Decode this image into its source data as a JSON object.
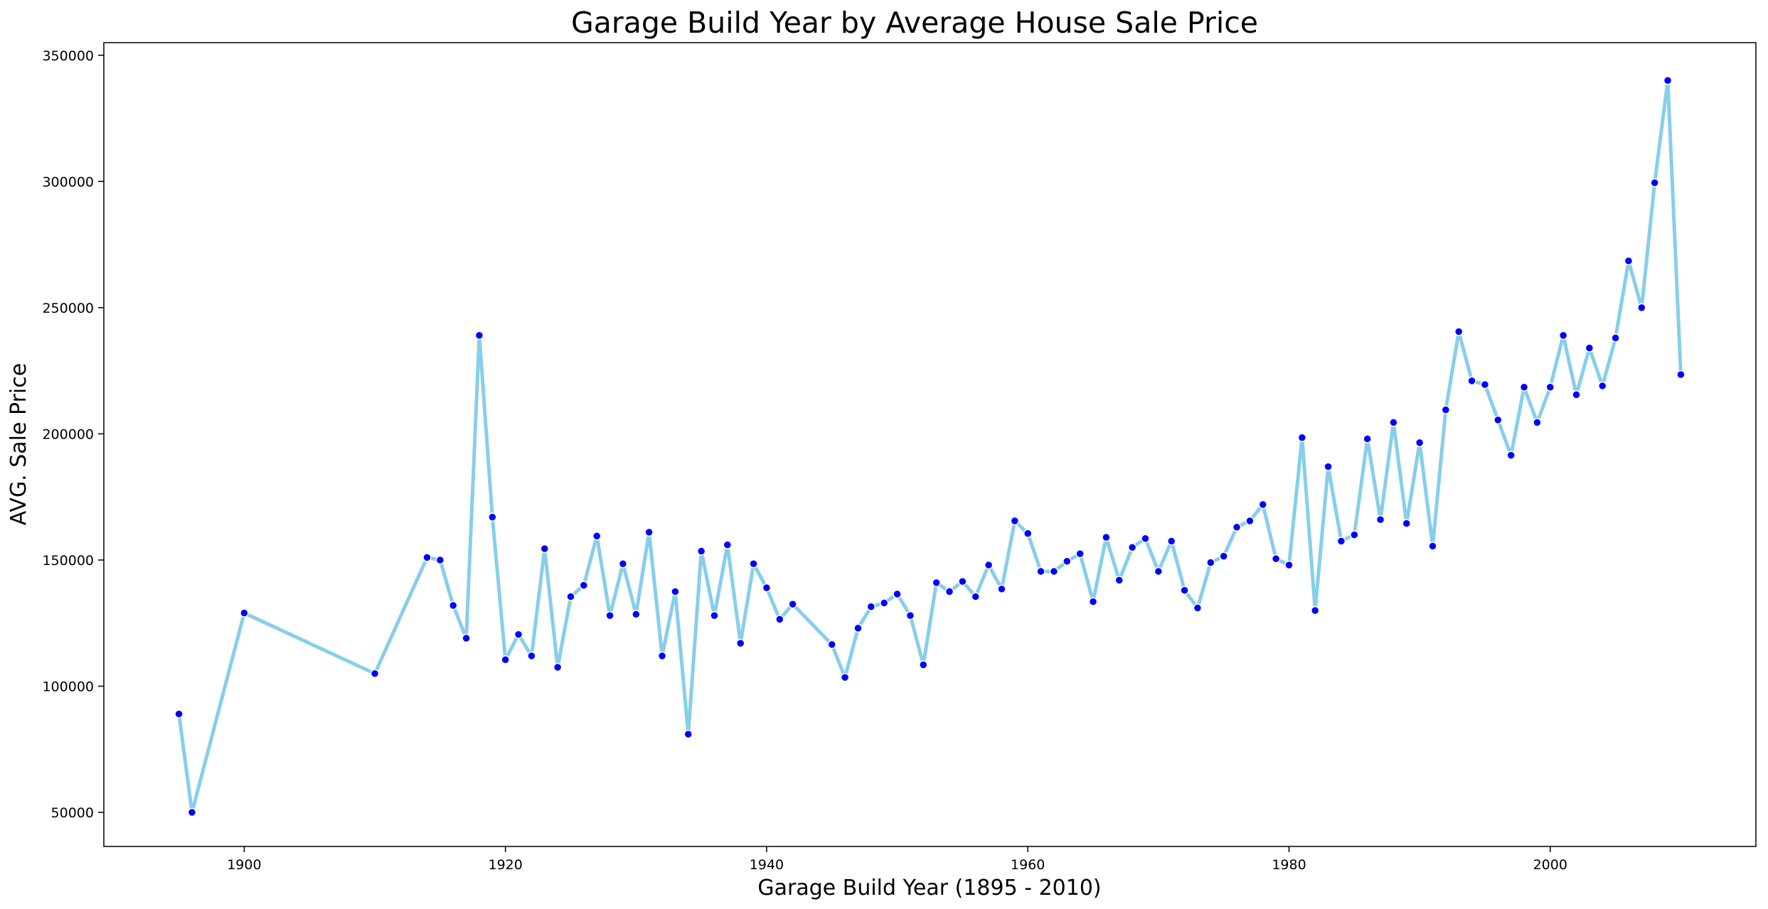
{
  "chart_data": {
    "type": "line",
    "title": "Garage Build Year by Average House Sale Price",
    "xlabel": "Garage Build Year (1895 - 2010)",
    "ylabel": "AVG. Sale Price",
    "xlim": [
      1889.25,
      2015.75
    ],
    "ylim": [
      36500,
      355000
    ],
    "xticks": [
      1900,
      1920,
      1940,
      1960,
      1980,
      2000
    ],
    "yticks": [
      50000,
      100000,
      150000,
      200000,
      250000,
      300000,
      350000
    ],
    "grid": false,
    "line_color": "#87CEEB",
    "marker_color": "#0000FF",
    "series": [
      {
        "x": [
          1895,
          1896,
          1900,
          1910,
          1914,
          1915,
          1916,
          1917,
          1918,
          1919,
          1920,
          1921,
          1922,
          1923,
          1924,
          1925,
          1926,
          1927,
          1928,
          1929,
          1930,
          1931,
          1932,
          1933,
          1934,
          1935,
          1936,
          1937,
          1938,
          1939,
          1940,
          1941,
          1942,
          1945,
          1946,
          1947,
          1948,
          1949,
          1950,
          1951,
          1952,
          1953,
          1954,
          1955,
          1956,
          1957,
          1958,
          1959,
          1960,
          1961,
          1962,
          1963,
          1964,
          1965,
          1966,
          1967,
          1968,
          1969,
          1970,
          1971,
          1972,
          1973,
          1974,
          1975,
          1976,
          1977,
          1978,
          1979,
          1980,
          1981,
          1982,
          1983,
          1984,
          1985,
          1986,
          1987,
          1988,
          1989,
          1990,
          1991,
          1992,
          1993,
          1994,
          1995,
          1996,
          1997,
          1998,
          1999,
          2000,
          2001,
          2002,
          2003,
          2004,
          2005,
          2006,
          2007,
          2008,
          2009,
          2010
        ],
        "y": [
          89000,
          50000,
          129000,
          105000,
          151000,
          150000,
          132000,
          119000,
          239000,
          167000,
          110500,
          120500,
          112000,
          154500,
          107500,
          135500,
          140000,
          159500,
          128000,
          148500,
          128500,
          161000,
          112000,
          137500,
          81000,
          153500,
          128000,
          156000,
          117000,
          148500,
          139000,
          126500,
          132500,
          116500,
          103500,
          123000,
          131500,
          133000,
          136500,
          128000,
          108500,
          141000,
          137500,
          141500,
          135500,
          148000,
          138500,
          165500,
          160500,
          145500,
          145500,
          149500,
          152500,
          133500,
          159000,
          142000,
          155000,
          158500,
          145500,
          157500,
          138000,
          131000,
          149000,
          151500,
          163000,
          165500,
          172000,
          150500,
          148000,
          198500,
          130000,
          187000,
          157500,
          160000,
          198000,
          166000,
          204500,
          164500,
          196500,
          155500,
          209500,
          240500,
          221000,
          219500,
          205500,
          191500,
          218500,
          204500,
          218500,
          239000,
          215500,
          234000,
          219000,
          238000,
          268500,
          250000,
          299500,
          340000,
          223500
        ]
      }
    ]
  }
}
